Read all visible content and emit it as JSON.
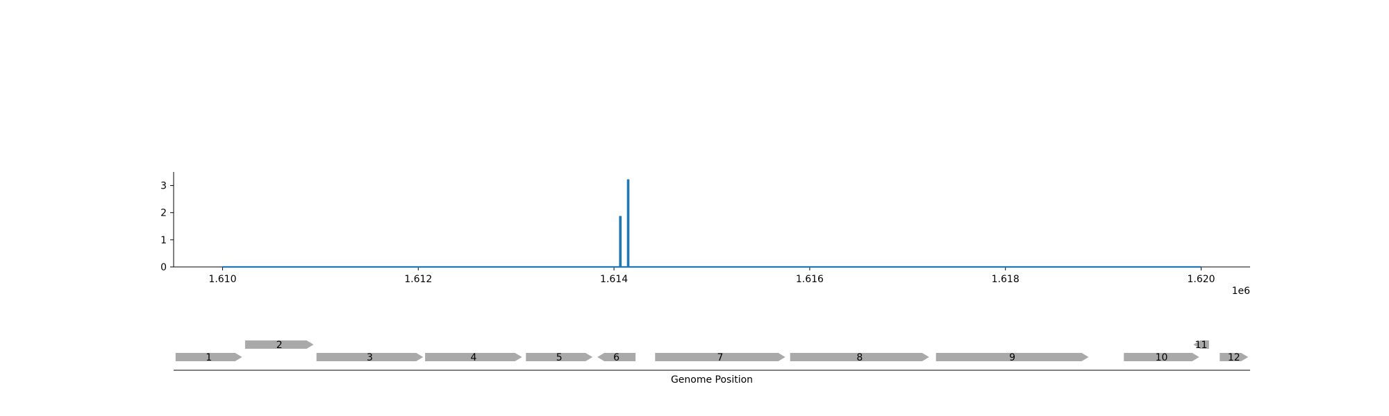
{
  "chart_data": [
    {
      "type": "line",
      "title": "",
      "xlabel": "",
      "ylabel": "",
      "x_offset_label": "1e6",
      "xlim": [
        1609500,
        1620500
      ],
      "ylim": [
        0,
        3.5
      ],
      "x_ticks": [
        1610000,
        1612000,
        1614000,
        1616000,
        1618000,
        1620000
      ],
      "x_tick_labels": [
        "1.610",
        "1.612",
        "1.614",
        "1.616",
        "1.618",
        "1.620"
      ],
      "y_ticks": [
        0,
        1,
        2,
        3
      ],
      "y_tick_labels": [
        "0",
        "1",
        "2",
        "3"
      ],
      "grid": false,
      "color": "#1f77b4",
      "series": [
        {
          "x": [
            1610000,
            1614060,
            1614060,
            1614070,
            1614070,
            1614140,
            1614140,
            1614150,
            1614150,
            1620000
          ],
          "y": [
            0,
            0,
            1.85,
            1.85,
            0,
            0,
            3.2,
            3.2,
            0,
            0
          ]
        }
      ]
    },
    {
      "type": "gene-track",
      "xlabel": "Genome Position",
      "xlim": [
        1609500,
        1620500
      ],
      "feature_color": "#a9a9a9",
      "features": [
        {
          "label": "1",
          "start": 1609520,
          "end": 1610200,
          "strand": "+",
          "row": 0
        },
        {
          "label": "2",
          "start": 1610230,
          "end": 1610930,
          "strand": "+",
          "row": 1
        },
        {
          "label": "3",
          "start": 1610960,
          "end": 1612050,
          "strand": "+",
          "row": 0
        },
        {
          "label": "4",
          "start": 1612070,
          "end": 1613060,
          "strand": "+",
          "row": 0
        },
        {
          "label": "5",
          "start": 1613100,
          "end": 1613780,
          "strand": "+",
          "row": 0
        },
        {
          "label": "6",
          "start": 1613830,
          "end": 1614220,
          "strand": "-",
          "row": 0
        },
        {
          "label": "7",
          "start": 1614420,
          "end": 1615750,
          "strand": "+",
          "row": 0
        },
        {
          "label": "8",
          "start": 1615800,
          "end": 1617220,
          "strand": "+",
          "row": 0
        },
        {
          "label": "9",
          "start": 1617290,
          "end": 1618850,
          "strand": "+",
          "row": 0
        },
        {
          "label": "10",
          "start": 1619210,
          "end": 1619980,
          "strand": "+",
          "row": 0
        },
        {
          "label": "11",
          "start": 1619920,
          "end": 1620080,
          "strand": "-",
          "row": 1
        },
        {
          "label": "12",
          "start": 1620190,
          "end": 1620480,
          "strand": "+",
          "row": 0
        }
      ]
    }
  ]
}
